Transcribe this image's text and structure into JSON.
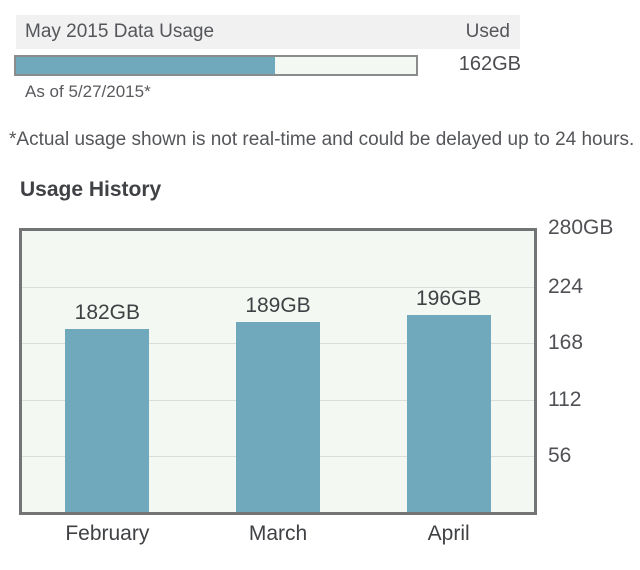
{
  "usage_meter": {
    "title": "May 2015 Data Usage",
    "used_label": "Used",
    "used_value": "162GB",
    "as_of": "As of 5/27/2015*",
    "percent_used": 64.8
  },
  "disclaimer": "*Actual usage shown is not real-time and could be delayed up to 24 hours.",
  "history": {
    "heading": "Usage History"
  },
  "chart_data": {
    "type": "bar",
    "title": "Usage History",
    "categories": [
      "February",
      "March",
      "April"
    ],
    "values": [
      182,
      189,
      196
    ],
    "value_labels": [
      "182GB",
      "189GB",
      "196GB"
    ],
    "unit": "GB",
    "xlabel": "",
    "ylabel": "",
    "ylim": [
      0,
      280
    ],
    "ytick_values": [
      280,
      224,
      168,
      112,
      56
    ],
    "ytick_labels": [
      "280GB",
      "224",
      "168",
      "112",
      "56"
    ],
    "gridlines": [
      224,
      168,
      112,
      56
    ],
    "grid": true,
    "legend": false,
    "bar_color": "#6FA9BB",
    "plot_background": "#F3F9F2"
  },
  "colors": {
    "accent_teal": "#6FA9BB",
    "header_background": "#F1F1F2",
    "plot_background": "#F3F9F2",
    "chart_border": "#737476",
    "gridline": "#D8DFD8",
    "text_dark": "#3F4144",
    "text_medium": "#54565A"
  }
}
